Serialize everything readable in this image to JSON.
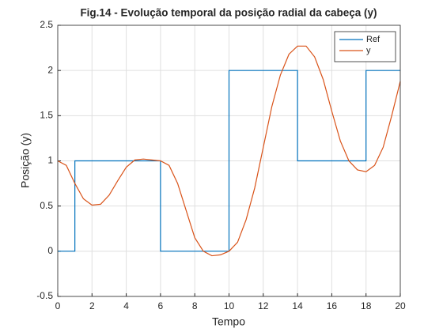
{
  "chart_data": {
    "type": "line",
    "title": "Fig.14 - Evolução temporal da posição radial da cabeça (y)",
    "xlabel": "Tempo",
    "ylabel": "Posição (y)",
    "series": [
      {
        "name": "Ref",
        "color": "#0072BD",
        "x": [
          0,
          1,
          1,
          6,
          6,
          10,
          10,
          14,
          14,
          18,
          18,
          20
        ],
        "values": [
          0,
          0,
          1,
          1,
          0,
          0,
          2,
          2,
          1,
          1,
          2,
          2
        ]
      },
      {
        "name": "y",
        "color": "#D95319",
        "x": [
          0,
          0.5,
          1,
          1.5,
          2,
          2.5,
          3,
          3.5,
          4,
          4.5,
          5,
          5.5,
          6,
          6.5,
          7,
          7.5,
          8,
          8.5,
          9,
          9.5,
          10,
          10.5,
          11,
          11.5,
          12,
          12.5,
          13,
          13.5,
          14,
          14.5,
          15,
          15.5,
          16,
          16.5,
          17,
          17.5,
          18,
          18.5,
          19,
          19.5,
          20
        ],
        "values": [
          1.0,
          0.95,
          0.75,
          0.58,
          0.51,
          0.52,
          0.62,
          0.78,
          0.93,
          1.01,
          1.02,
          1.01,
          1.0,
          0.95,
          0.75,
          0.45,
          0.15,
          0.0,
          -0.05,
          -0.04,
          0.0,
          0.1,
          0.35,
          0.7,
          1.15,
          1.6,
          1.95,
          2.18,
          2.27,
          2.27,
          2.15,
          1.9,
          1.55,
          1.22,
          1.0,
          0.9,
          0.88,
          0.95,
          1.15,
          1.5,
          1.88
        ]
      }
    ],
    "xlim": [
      0,
      20
    ],
    "xticks": [
      0,
      2,
      4,
      6,
      8,
      10,
      12,
      14,
      16,
      18,
      20
    ],
    "ylim": [
      -0.5,
      2.5
    ],
    "yticks": [
      -0.5,
      0,
      0.5,
      1,
      1.5,
      2,
      2.5
    ],
    "grid": true,
    "legend": "northeast"
  }
}
